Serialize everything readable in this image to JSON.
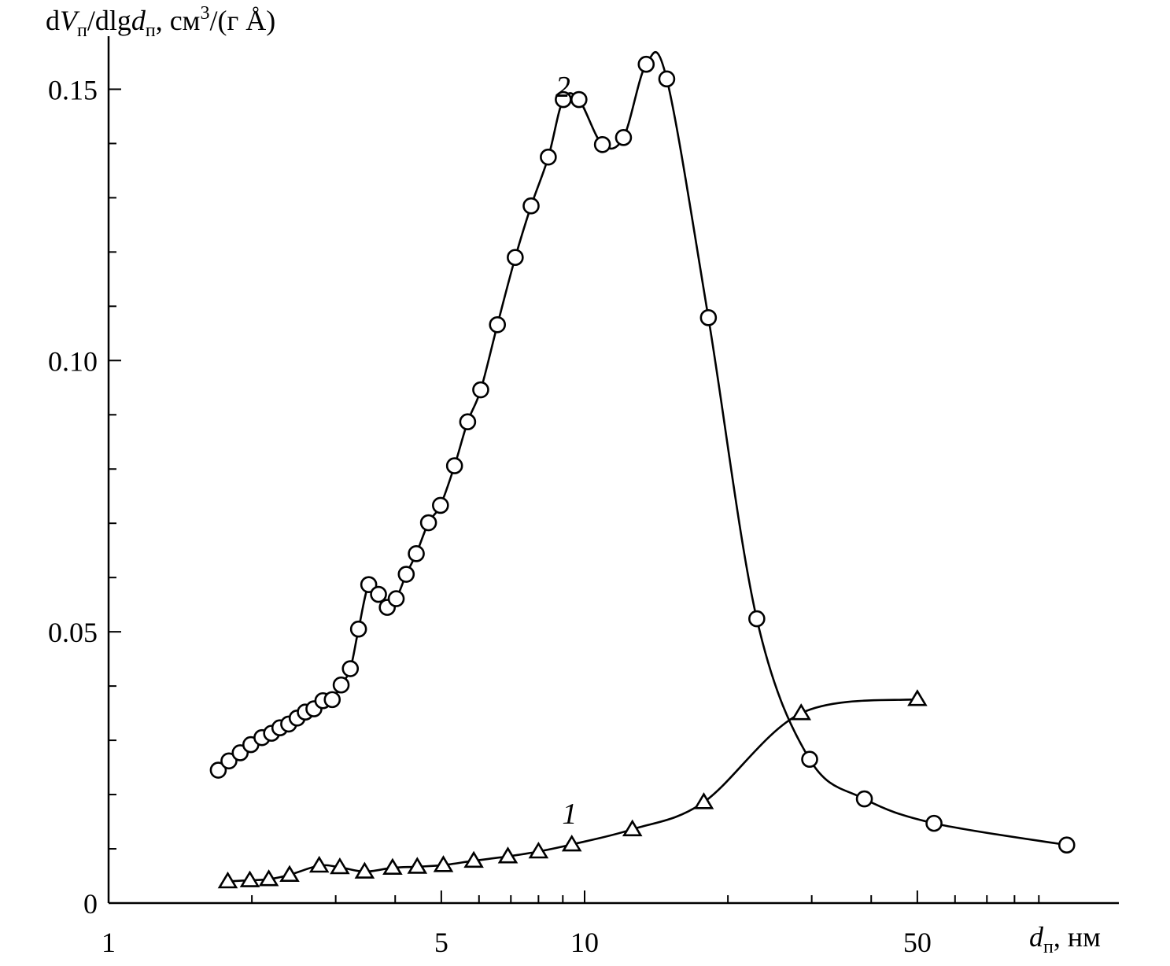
{
  "chart_data": {
    "type": "line",
    "xscale": "log",
    "xlim": [
      1,
      75
    ],
    "ylim": [
      0,
      0.15
    ],
    "ylabel": {
      "pre": "d",
      "v": "V",
      "vsub": "п",
      "mid": "/dlg",
      "d": "d",
      "dsub": "п",
      "post": ", см",
      "sup": "3",
      "tail": "/(г Å)"
    },
    "xlabel": {
      "d": "d",
      "dsub": "п",
      "post": ", нм"
    },
    "x_ticks": [
      {
        "value": 1,
        "label": "1"
      },
      {
        "value": 5,
        "label": "5"
      },
      {
        "value": 10,
        "label": "10"
      },
      {
        "value": 50,
        "label": "50"
      }
    ],
    "y_ticks": [
      {
        "value": 0,
        "label": "0"
      },
      {
        "value": 0.05,
        "label": "0.05"
      },
      {
        "value": 0.1,
        "label": "0.10"
      },
      {
        "value": 0.15,
        "label": "0.15"
      }
    ],
    "series": [
      {
        "name": "1",
        "marker": "triangle",
        "label_pos": {
          "x": 9.3,
          "y": 0.0165
        },
        "points": [
          [
            1.78,
            0.004
          ],
          [
            1.98,
            0.0042
          ],
          [
            2.17,
            0.0044
          ],
          [
            2.4,
            0.0052
          ],
          [
            2.77,
            0.0069
          ],
          [
            3.06,
            0.0066
          ],
          [
            3.45,
            0.0058
          ],
          [
            3.95,
            0.0065
          ],
          [
            4.45,
            0.0067
          ],
          [
            5.05,
            0.007
          ],
          [
            5.85,
            0.0078
          ],
          [
            6.9,
            0.0086
          ],
          [
            8.0,
            0.0095
          ],
          [
            9.4,
            0.0108
          ],
          [
            12.6,
            0.0136
          ],
          [
            17.8,
            0.0186
          ],
          [
            28.5,
            0.035
          ],
          [
            50.0,
            0.0376
          ]
        ]
      },
      {
        "name": "2",
        "marker": "circle",
        "label_pos": {
          "x": 9.0,
          "y": 0.1505
        },
        "points": [
          [
            1.7,
            0.0245
          ],
          [
            1.79,
            0.0262
          ],
          [
            1.89,
            0.0277
          ],
          [
            1.99,
            0.0292
          ],
          [
            2.1,
            0.0305
          ],
          [
            2.2,
            0.0313
          ],
          [
            2.29,
            0.0323
          ],
          [
            2.39,
            0.033
          ],
          [
            2.49,
            0.0341
          ],
          [
            2.59,
            0.0352
          ],
          [
            2.7,
            0.0358
          ],
          [
            2.82,
            0.0373
          ],
          [
            2.95,
            0.0375
          ],
          [
            3.08,
            0.0402
          ],
          [
            3.22,
            0.0432
          ],
          [
            3.35,
            0.0505
          ],
          [
            3.52,
            0.0587
          ],
          [
            3.69,
            0.0569
          ],
          [
            3.85,
            0.0545
          ],
          [
            4.02,
            0.0561
          ],
          [
            4.22,
            0.0606
          ],
          [
            4.43,
            0.0644
          ],
          [
            4.7,
            0.0701
          ],
          [
            4.98,
            0.0733
          ],
          [
            5.33,
            0.0806
          ],
          [
            5.68,
            0.0887
          ],
          [
            6.05,
            0.0946
          ],
          [
            6.56,
            0.1066
          ],
          [
            7.15,
            0.119
          ],
          [
            7.72,
            0.1285
          ],
          [
            8.39,
            0.1375
          ],
          [
            9.02,
            0.1481
          ],
          [
            9.73,
            0.1481
          ],
          [
            10.9,
            0.1398
          ],
          [
            12.07,
            0.1411
          ],
          [
            13.47,
            0.1546
          ],
          [
            14.88,
            0.1519
          ],
          [
            18.2,
            0.1079
          ],
          [
            23.0,
            0.0524
          ],
          [
            29.7,
            0.0265
          ],
          [
            38.7,
            0.0192
          ],
          [
            54.2,
            0.0147
          ],
          [
            103.0,
            0.0107
          ]
        ]
      }
    ]
  }
}
